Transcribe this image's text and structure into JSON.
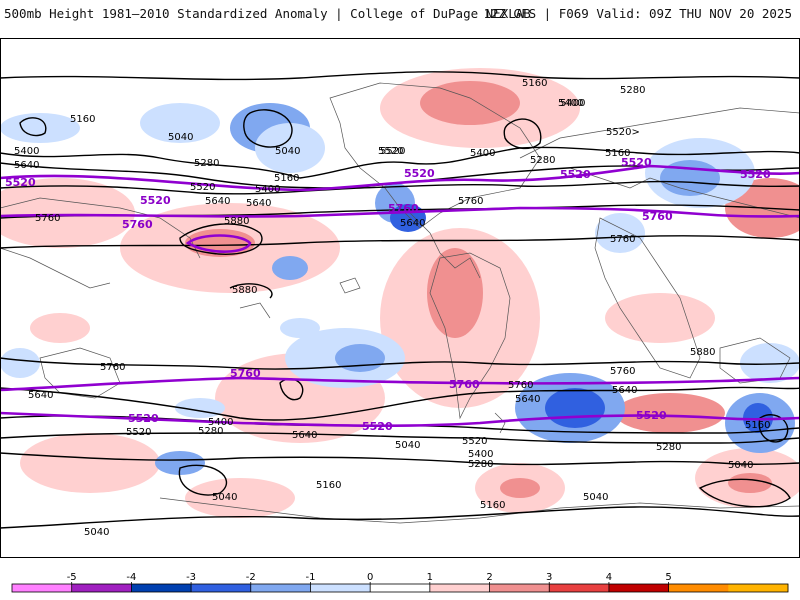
{
  "header": {
    "title": "500mb Height 1981–2010 Standardized Anomaly | College of DuPage NEXLAB",
    "run_info": "12Z GFS | F069 Valid: 09Z THU NOV 20 2025"
  },
  "map": {
    "highlighted_contours_label": "Purple contours (5520, 5760)",
    "contour_labels_black": [
      "5160",
      "5160",
      "5040",
      "5040",
      "5400",
      "5640",
      "5280",
      "5160",
      "5520",
      "5400",
      "5760",
      "5640",
      "5880",
      "5880",
      "5400",
      "5520",
      "5640",
      "5760",
      "5280",
      "5400",
      "5280",
      "5160",
      "5400",
      "5640",
      "5520",
      "5760",
      "5880",
      "5760",
      "5640",
      "5400",
      "5640",
      "5520",
      "5280",
      "5760",
      "5640",
      "5040",
      "5160",
      "5040",
      "5040",
      "5160",
      "5520",
      "5400",
      "5280",
      "5760",
      "5640",
      "5280",
      "5160",
      "5040",
      "5040",
      "5520>"
    ],
    "contour_labels_purple": [
      "5520",
      "5520",
      "5520",
      "5520",
      "5760",
      "5760",
      "5760",
      "5760",
      "5760",
      "5520",
      "5520",
      "5520",
      "5520",
      "5520"
    ]
  },
  "colorbar": {
    "ticks": [
      "-5",
      "-4",
      "-3",
      "-2",
      "-1",
      "0",
      "1",
      "2",
      "3",
      "4",
      "5"
    ],
    "colors": [
      "#ff80ff",
      "#a020c0",
      "#0040b0",
      "#3060e0",
      "#80a8f0",
      "#cce0ff",
      "#ffffff",
      "#ffd0d0",
      "#f09090",
      "#e84040",
      "#c00000",
      "#ff8c00",
      "#ffb300"
    ]
  }
}
